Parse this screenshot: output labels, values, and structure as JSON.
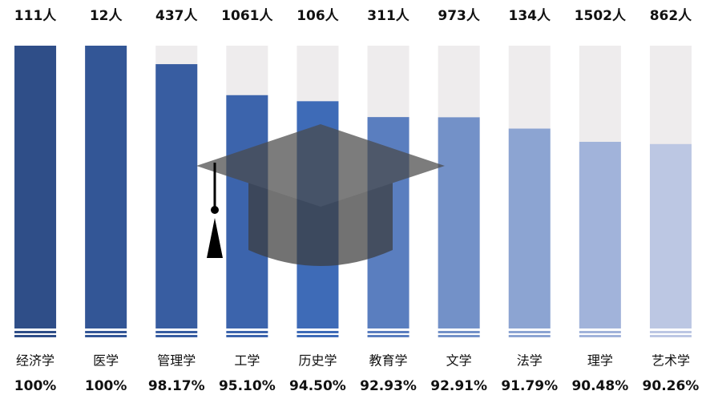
{
  "chart_data": {
    "type": "bar",
    "categories": [
      "经济学",
      "医学",
      "管理学",
      "工学",
      "历史学",
      "教育学",
      "文学",
      "法学",
      "理学",
      "艺术学"
    ],
    "count_labels": [
      "111人",
      "12人",
      "437人",
      "1061人",
      "106人",
      "311人",
      "973人",
      "134人",
      "1502人",
      "862人"
    ],
    "values": [
      100,
      100,
      98.17,
      95.1,
      94.5,
      92.93,
      92.91,
      91.79,
      90.48,
      90.26
    ],
    "value_labels": [
      "100%",
      "100%",
      "98.17%",
      "95.10%",
      "94.50%",
      "92.93%",
      "92.91%",
      "91.79%",
      "90.48%",
      "90.26%"
    ],
    "colors": [
      "#2f4e88",
      "#335696",
      "#385da1",
      "#3c64ac",
      "#3e6bb7",
      "#5a7ebf",
      "#7391c8",
      "#8ca4d2",
      "#a1b3da",
      "#bcc7e3"
    ],
    "ylim": [
      72,
      100
    ]
  }
}
